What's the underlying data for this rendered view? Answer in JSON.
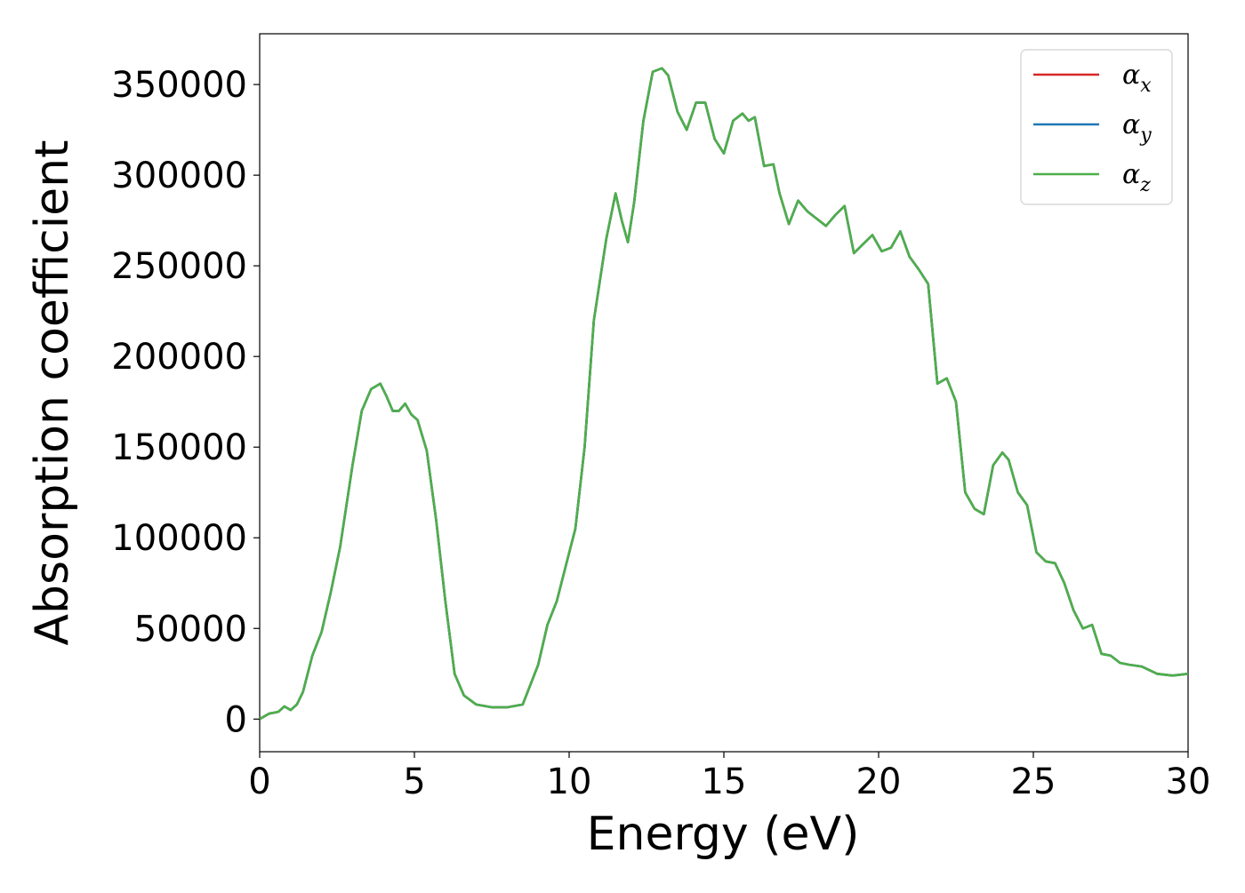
{
  "chart_data": {
    "type": "line",
    "title": "",
    "xlabel": "Energy (eV)",
    "ylabel": "Absorption coefficient",
    "xlim": [
      0,
      30
    ],
    "ylim": [
      -18000,
      378000
    ],
    "xticks": [
      0,
      5,
      10,
      15,
      20,
      25,
      30
    ],
    "xtick_labels": [
      "0",
      "5",
      "10",
      "15",
      "20",
      "25",
      "30"
    ],
    "yticks": [
      0,
      50000,
      100000,
      150000,
      200000,
      250000,
      300000,
      350000
    ],
    "ytick_labels": [
      "0",
      "50000",
      "100000",
      "150000",
      "200000",
      "250000",
      "300000",
      "350000"
    ],
    "grid": false,
    "legend_position": "top-right",
    "x": [
      0,
      0.3,
      0.6,
      0.8,
      1.0,
      1.2,
      1.4,
      1.7,
      2.0,
      2.3,
      2.6,
      3.0,
      3.3,
      3.6,
      3.9,
      4.1,
      4.3,
      4.5,
      4.7,
      4.9,
      5.1,
      5.4,
      5.7,
      6.0,
      6.3,
      6.6,
      7.0,
      7.5,
      8.0,
      8.5,
      9.0,
      9.3,
      9.6,
      9.9,
      10.2,
      10.5,
      10.8,
      11.2,
      11.5,
      11.7,
      11.9,
      12.1,
      12.4,
      12.7,
      13.0,
      13.2,
      13.5,
      13.8,
      14.1,
      14.4,
      14.7,
      15.0,
      15.3,
      15.6,
      15.8,
      16.0,
      16.3,
      16.6,
      16.8,
      17.1,
      17.4,
      17.7,
      18.0,
      18.3,
      18.6,
      18.9,
      19.2,
      19.5,
      19.8,
      20.1,
      20.4,
      20.7,
      21.0,
      21.3,
      21.6,
      21.9,
      22.2,
      22.5,
      22.8,
      23.1,
      23.4,
      23.7,
      24.0,
      24.2,
      24.5,
      24.8,
      25.1,
      25.4,
      25.7,
      26.0,
      26.3,
      26.6,
      26.9,
      27.2,
      27.5,
      27.8,
      28.1,
      28.5,
      29.0,
      29.5,
      30.0
    ],
    "series": [
      {
        "name": "α_x",
        "color": "#d62728",
        "values": [
          0,
          3000,
          4000,
          7000,
          5000,
          8000,
          15000,
          35000,
          48000,
          70000,
          95000,
          140000,
          170000,
          182000,
          185000,
          178000,
          170000,
          170000,
          174000,
          168000,
          165000,
          148000,
          110000,
          65000,
          25000,
          13000,
          8000,
          6500,
          6500,
          8000,
          30000,
          52000,
          65000,
          85000,
          105000,
          150000,
          220000,
          265000,
          290000,
          275000,
          263000,
          285000,
          330000,
          357000,
          359000,
          355000,
          335000,
          325000,
          340000,
          340000,
          320000,
          312000,
          330000,
          334000,
          330000,
          332000,
          305000,
          306000,
          290000,
          273000,
          286000,
          280000,
          276000,
          272000,
          278000,
          283000,
          257000,
          262000,
          267000,
          258000,
          260000,
          269000,
          255000,
          248000,
          240000,
          185000,
          188000,
          175000,
          125000,
          116000,
          113000,
          140000,
          147000,
          143000,
          125000,
          118000,
          92000,
          87000,
          86000,
          75000,
          60000,
          50000,
          52000,
          36000,
          35000,
          31000,
          30000,
          29000,
          25000,
          24000,
          25000
        ]
      },
      {
        "name": "α_y",
        "color": "#1f77b4",
        "values": [
          0,
          3000,
          4000,
          7000,
          5000,
          8000,
          15000,
          35000,
          48000,
          70000,
          95000,
          140000,
          170000,
          182000,
          185000,
          178000,
          170000,
          170000,
          174000,
          168000,
          165000,
          148000,
          110000,
          65000,
          25000,
          13000,
          8000,
          6500,
          6500,
          8000,
          30000,
          52000,
          65000,
          85000,
          105000,
          150000,
          220000,
          265000,
          290000,
          275000,
          263000,
          285000,
          330000,
          357000,
          359000,
          355000,
          335000,
          325000,
          340000,
          340000,
          320000,
          312000,
          330000,
          334000,
          330000,
          332000,
          305000,
          306000,
          290000,
          273000,
          286000,
          280000,
          276000,
          272000,
          278000,
          283000,
          257000,
          262000,
          267000,
          258000,
          260000,
          269000,
          255000,
          248000,
          240000,
          185000,
          188000,
          175000,
          125000,
          116000,
          113000,
          140000,
          147000,
          143000,
          125000,
          118000,
          92000,
          87000,
          86000,
          75000,
          60000,
          50000,
          52000,
          36000,
          35000,
          31000,
          30000,
          29000,
          25000,
          24000,
          25000
        ]
      },
      {
        "name": "α_z",
        "color": "#4daf4a",
        "values": [
          0,
          3000,
          4000,
          7000,
          5000,
          8000,
          15000,
          35000,
          48000,
          70000,
          95000,
          140000,
          170000,
          182000,
          185000,
          178000,
          170000,
          170000,
          174000,
          168000,
          165000,
          148000,
          110000,
          65000,
          25000,
          13000,
          8000,
          6500,
          6500,
          8000,
          30000,
          52000,
          65000,
          85000,
          105000,
          150000,
          220000,
          265000,
          290000,
          275000,
          263000,
          285000,
          330000,
          357000,
          359000,
          355000,
          335000,
          325000,
          340000,
          340000,
          320000,
          312000,
          330000,
          334000,
          330000,
          332000,
          305000,
          306000,
          290000,
          273000,
          286000,
          280000,
          276000,
          272000,
          278000,
          283000,
          257000,
          262000,
          267000,
          258000,
          260000,
          269000,
          255000,
          248000,
          240000,
          185000,
          188000,
          175000,
          125000,
          116000,
          113000,
          140000,
          147000,
          143000,
          125000,
          118000,
          92000,
          87000,
          86000,
          75000,
          60000,
          50000,
          52000,
          36000,
          35000,
          31000,
          30000,
          29000,
          25000,
          24000,
          25000
        ]
      }
    ]
  }
}
